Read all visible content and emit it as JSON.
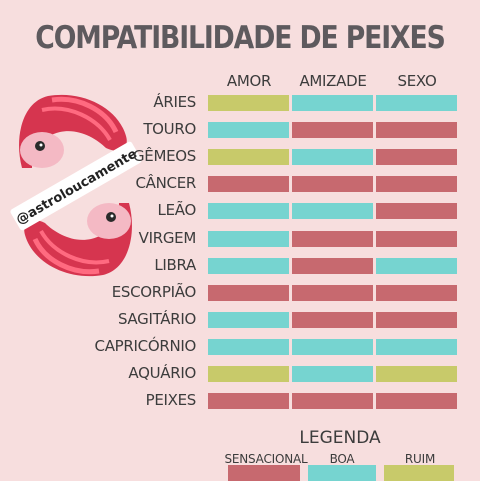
{
  "title": "COMPATIBILIDADE DE PEIXES",
  "watermark": "@astroloucamente",
  "colors": {
    "sensacional": "#c7696f",
    "boa": "#76d4d0",
    "ruim": "#c8ca6a"
  },
  "chart_data": {
    "type": "table",
    "title": "COMPATIBILIDADE DE PEIXES",
    "columns": [
      "AMOR",
      "AMIZADE",
      "SEXO"
    ],
    "rows": [
      {
        "sign": "ÁRIES",
        "values": [
          "ruim",
          "boa",
          "boa"
        ]
      },
      {
        "sign": "TOURO",
        "values": [
          "boa",
          "sensacional",
          "sensacional"
        ]
      },
      {
        "sign": "GÊMEOS",
        "values": [
          "ruim",
          "boa",
          "sensacional"
        ]
      },
      {
        "sign": "CÂNCER",
        "values": [
          "sensacional",
          "sensacional",
          "sensacional"
        ]
      },
      {
        "sign": "LEÃO",
        "values": [
          "boa",
          "boa",
          "sensacional"
        ]
      },
      {
        "sign": "VIRGEM",
        "values": [
          "boa",
          "sensacional",
          "sensacional"
        ]
      },
      {
        "sign": "LIBRA",
        "values": [
          "boa",
          "sensacional",
          "boa"
        ]
      },
      {
        "sign": "ESCORPIÃO",
        "values": [
          "sensacional",
          "sensacional",
          "sensacional"
        ]
      },
      {
        "sign": "SAGITÁRIO",
        "values": [
          "boa",
          "sensacional",
          "sensacional"
        ]
      },
      {
        "sign": "CAPRICÓRNIO",
        "values": [
          "boa",
          "boa",
          "boa"
        ]
      },
      {
        "sign": "AQUÁRIO",
        "values": [
          "ruim",
          "boa",
          "ruim"
        ]
      },
      {
        "sign": "PEIXES",
        "values": [
          "sensacional",
          "sensacional",
          "sensacional"
        ]
      }
    ],
    "legend": {
      "title": "LEGENDA",
      "items": [
        {
          "key": "sensacional",
          "label": "SENSACIONAL"
        },
        {
          "key": "boa",
          "label": "BOA"
        },
        {
          "key": "ruim",
          "label": "RUIM"
        }
      ]
    }
  }
}
